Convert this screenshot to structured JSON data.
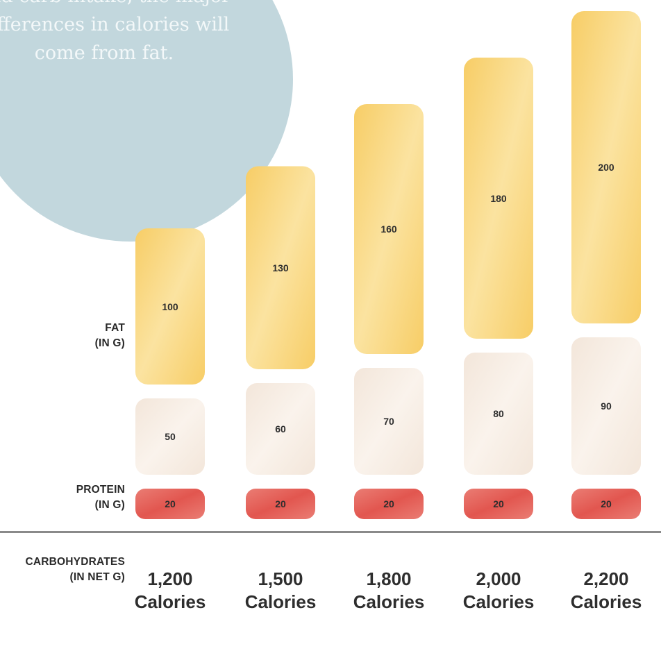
{
  "callout": {
    "text": "Because there isn’t much wiggle room with protein and carb intake, the major differences in calories will come from fat."
  },
  "row_labels": {
    "fat": [
      "FAT",
      "(IN G)"
    ],
    "protein": [
      "PROTEIN",
      "(IN G)"
    ],
    "carbs": [
      "CARBOHYDRATES",
      "(IN NET G)"
    ]
  },
  "colors": {
    "fat": "#f7cd66",
    "fat_light": "#fbe3a0",
    "protein": "#f3e6da",
    "protein_light": "#faf3ec",
    "carbs": "#ea7d74",
    "carbs_dark": "#e2564f",
    "callout": "#c2d7dd",
    "axis": "#8a8a8a"
  },
  "chart_data": {
    "type": "bar",
    "stacked": true,
    "categories": [
      [
        "1,200",
        "Calories"
      ],
      [
        "1,500",
        "Calories"
      ],
      [
        "1,800",
        "Calories"
      ],
      [
        "2,000",
        "Calories"
      ],
      [
        "2,200",
        "Calories"
      ]
    ],
    "series": [
      {
        "name": "CARBOHYDRATES (IN NET G)",
        "key": "carbs",
        "values": [
          20,
          20,
          20,
          20,
          20
        ]
      },
      {
        "name": "PROTEIN (IN G)",
        "key": "protein",
        "values": [
          50,
          60,
          70,
          80,
          90
        ]
      },
      {
        "name": "FAT (IN G)",
        "key": "fat",
        "values": [
          100,
          130,
          160,
          180,
          200
        ]
      }
    ],
    "title": "",
    "xlabel": "",
    "ylabel": ""
  }
}
